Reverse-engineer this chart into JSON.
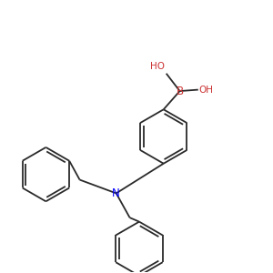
{
  "bg_color": "#ffffff",
  "bond_color": "#2a2a2a",
  "N_color": "#0000ff",
  "B_color": "#cc3333",
  "O_color": "#cc3333",
  "line_width": 1.3,
  "figsize": [
    3.0,
    3.0
  ],
  "dpi": 100,
  "xlim": [
    0.0,
    1.0
  ],
  "ylim": [
    0.0,
    1.0
  ]
}
